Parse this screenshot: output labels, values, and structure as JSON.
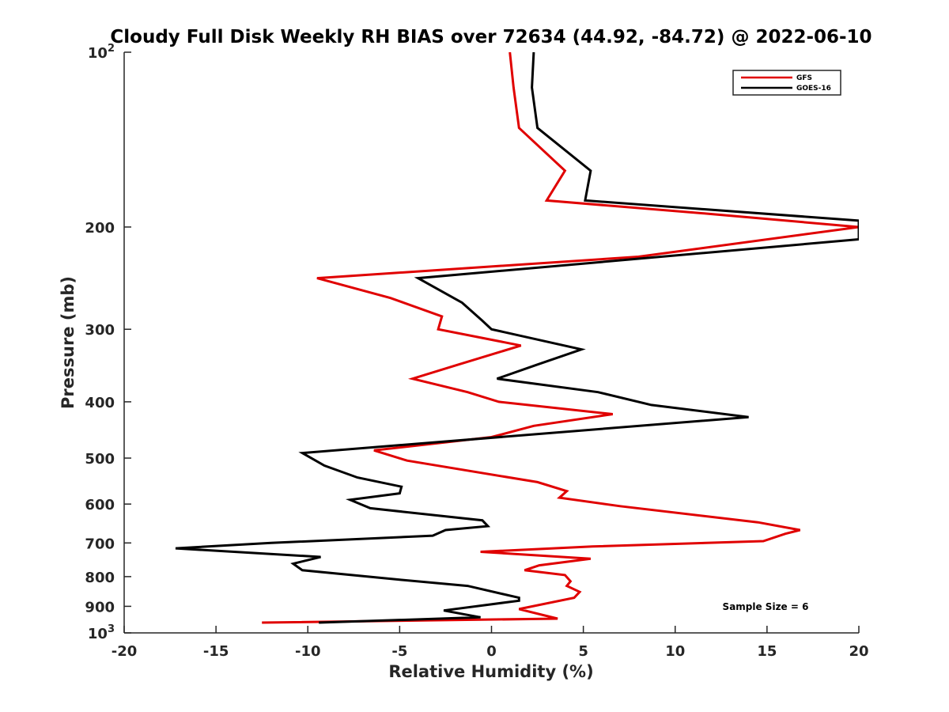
{
  "chart_data": {
    "type": "line",
    "title": "Cloudy Full Disk Weekly RH BIAS over 72634 (44.92, -84.72) @ 2022-06-10",
    "xlabel": "Relative Humidity (%)",
    "ylabel": "Pressure (mb)",
    "xlim": [
      -20,
      20
    ],
    "ylim": [
      100,
      1000
    ],
    "y_scale": "log",
    "y_reversed": true,
    "grid": false,
    "legend_position": "top-right",
    "x_ticks": [
      -20,
      -15,
      -10,
      -5,
      0,
      5,
      10,
      15,
      20
    ],
    "x_tick_labels": [
      "-20",
      "-15",
      "-10",
      "-5",
      "0",
      "5",
      "10",
      "15",
      "20"
    ],
    "y_ticks": [
      {
        "value": 100,
        "base": "10",
        "exp": "2"
      },
      {
        "value": 200,
        "label": "200"
      },
      {
        "value": 300,
        "label": "300"
      },
      {
        "value": 400,
        "label": "400"
      },
      {
        "value": 500,
        "label": "500"
      },
      {
        "value": 600,
        "label": "600"
      },
      {
        "value": 700,
        "label": "700"
      },
      {
        "value": 800,
        "label": "800"
      },
      {
        "value": 900,
        "label": "900"
      },
      {
        "value": 1000,
        "base": "10",
        "exp": "3"
      }
    ],
    "annotation": "Sample Size = 6",
    "series": [
      {
        "name": "GFS",
        "color": "#e00000",
        "points": [
          {
            "x": 1.0,
            "p": 100
          },
          {
            "x": 1.2,
            "p": 115
          },
          {
            "x": 1.5,
            "p": 135
          },
          {
            "x": 4.0,
            "p": 160
          },
          {
            "x": 3.0,
            "p": 180
          },
          {
            "x": 12.0,
            "p": 190
          },
          {
            "x": 20.0,
            "p": 200
          },
          {
            "x": 8.0,
            "p": 225
          },
          {
            "x": -9.5,
            "p": 245
          },
          {
            "x": -5.5,
            "p": 265
          },
          {
            "x": -2.7,
            "p": 285
          },
          {
            "x": -2.9,
            "p": 300
          },
          {
            "x": 1.6,
            "p": 320
          },
          {
            "x": -1.8,
            "p": 345
          },
          {
            "x": -4.3,
            "p": 365
          },
          {
            "x": -1.3,
            "p": 385
          },
          {
            "x": 0.4,
            "p": 400
          },
          {
            "x": 6.6,
            "p": 420
          },
          {
            "x": 2.3,
            "p": 440
          },
          {
            "x": 0.0,
            "p": 460
          },
          {
            "x": -6.4,
            "p": 485
          },
          {
            "x": -4.6,
            "p": 505
          },
          {
            "x": 2.5,
            "p": 550
          },
          {
            "x": 4.1,
            "p": 570
          },
          {
            "x": 3.7,
            "p": 585
          },
          {
            "x": 7.0,
            "p": 605
          },
          {
            "x": 14.5,
            "p": 645
          },
          {
            "x": 16.8,
            "p": 665
          },
          {
            "x": 16.0,
            "p": 675
          },
          {
            "x": 14.8,
            "p": 695
          },
          {
            "x": 5.5,
            "p": 710
          },
          {
            "x": -0.6,
            "p": 725
          },
          {
            "x": 5.4,
            "p": 745
          },
          {
            "x": 2.6,
            "p": 765
          },
          {
            "x": 1.8,
            "p": 780
          },
          {
            "x": 4.0,
            "p": 795
          },
          {
            "x": 4.3,
            "p": 815
          },
          {
            "x": 4.1,
            "p": 830
          },
          {
            "x": 4.8,
            "p": 850
          },
          {
            "x": 4.5,
            "p": 870
          },
          {
            "x": 1.5,
            "p": 910
          },
          {
            "x": 3.6,
            "p": 945
          },
          {
            "x": -12.5,
            "p": 960
          }
        ]
      },
      {
        "name": "GOES-16",
        "color": "#000000",
        "points": [
          {
            "x": 2.3,
            "p": 100
          },
          {
            "x": 2.2,
            "p": 115
          },
          {
            "x": 2.5,
            "p": 135
          },
          {
            "x": 5.4,
            "p": 160
          },
          {
            "x": 5.1,
            "p": 180
          },
          {
            "x": 20.0,
            "p": 195
          },
          {
            "x": 20.0,
            "p": 210
          },
          {
            "x": -4.0,
            "p": 245
          },
          {
            "x": -1.6,
            "p": 270
          },
          {
            "x": -0.5,
            "p": 290
          },
          {
            "x": 0.0,
            "p": 300
          },
          {
            "x": 4.9,
            "p": 325
          },
          {
            "x": 2.5,
            "p": 345
          },
          {
            "x": 0.3,
            "p": 365
          },
          {
            "x": 5.8,
            "p": 385
          },
          {
            "x": 8.7,
            "p": 405
          },
          {
            "x": 14.0,
            "p": 425
          },
          {
            "x": -10.3,
            "p": 490
          },
          {
            "x": -9.1,
            "p": 515
          },
          {
            "x": -7.3,
            "p": 540
          },
          {
            "x": -4.9,
            "p": 560
          },
          {
            "x": -5.0,
            "p": 575
          },
          {
            "x": -7.7,
            "p": 590
          },
          {
            "x": -6.6,
            "p": 610
          },
          {
            "x": -0.5,
            "p": 640
          },
          {
            "x": -0.2,
            "p": 655
          },
          {
            "x": -2.5,
            "p": 665
          },
          {
            "x": -3.2,
            "p": 680
          },
          {
            "x": -12.0,
            "p": 700
          },
          {
            "x": -17.2,
            "p": 715
          },
          {
            "x": -9.3,
            "p": 740
          },
          {
            "x": -10.8,
            "p": 760
          },
          {
            "x": -10.3,
            "p": 780
          },
          {
            "x": -5.0,
            "p": 810
          },
          {
            "x": -1.3,
            "p": 830
          },
          {
            "x": 1.5,
            "p": 870
          },
          {
            "x": 1.5,
            "p": 880
          },
          {
            "x": -2.6,
            "p": 915
          },
          {
            "x": -0.6,
            "p": 940
          },
          {
            "x": -9.4,
            "p": 960
          }
        ]
      }
    ]
  }
}
